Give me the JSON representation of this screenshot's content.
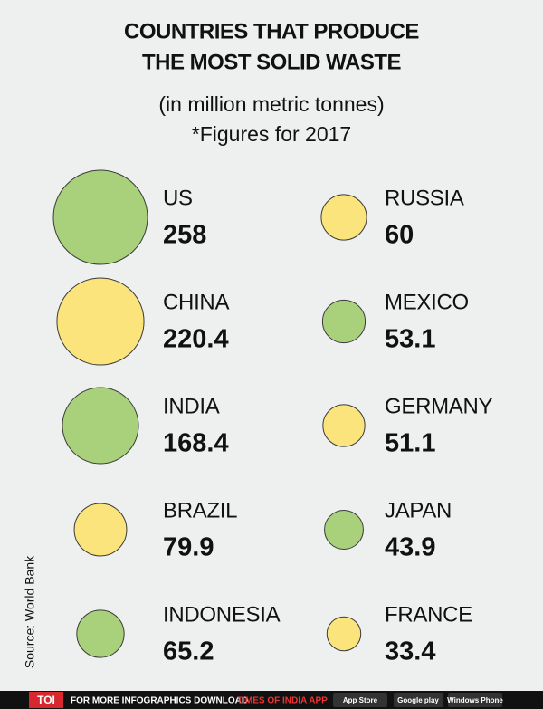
{
  "chart_data": {
    "type": "bubble",
    "title": [
      "COUNTRIES THAT PRODUCE",
      "THE MOST SOLID WASTE"
    ],
    "subtitle": [
      "(in million metric tonnes)",
      "*Figures for 2017"
    ],
    "categories": [
      "US",
      "CHINA",
      "INDIA",
      "BRAZIL",
      "INDONESIA",
      "RUSSIA",
      "MEXICO",
      "GERMANY",
      "JAPAN",
      "FRANCE"
    ],
    "values": [
      258,
      220.4,
      168.4,
      79.9,
      65.2,
      60,
      53.1,
      51.1,
      43.9,
      33.4
    ],
    "colors": [
      "#a9d17b",
      "#fbe47c",
      "#a9d17b",
      "#fbe47c",
      "#a9d17b",
      "#fbe47c",
      "#a9d17b",
      "#fbe47c",
      "#a9d17b",
      "#fbe47c"
    ],
    "source": "Source: World Bank"
  },
  "footer": {
    "logo": "TOI",
    "text": "FOR MORE INFOGRAPHICS DOWNLOAD",
    "app": "TIMES OF INDIA APP",
    "badges": [
      "App Store",
      "Google play",
      "Windows Phone"
    ]
  }
}
